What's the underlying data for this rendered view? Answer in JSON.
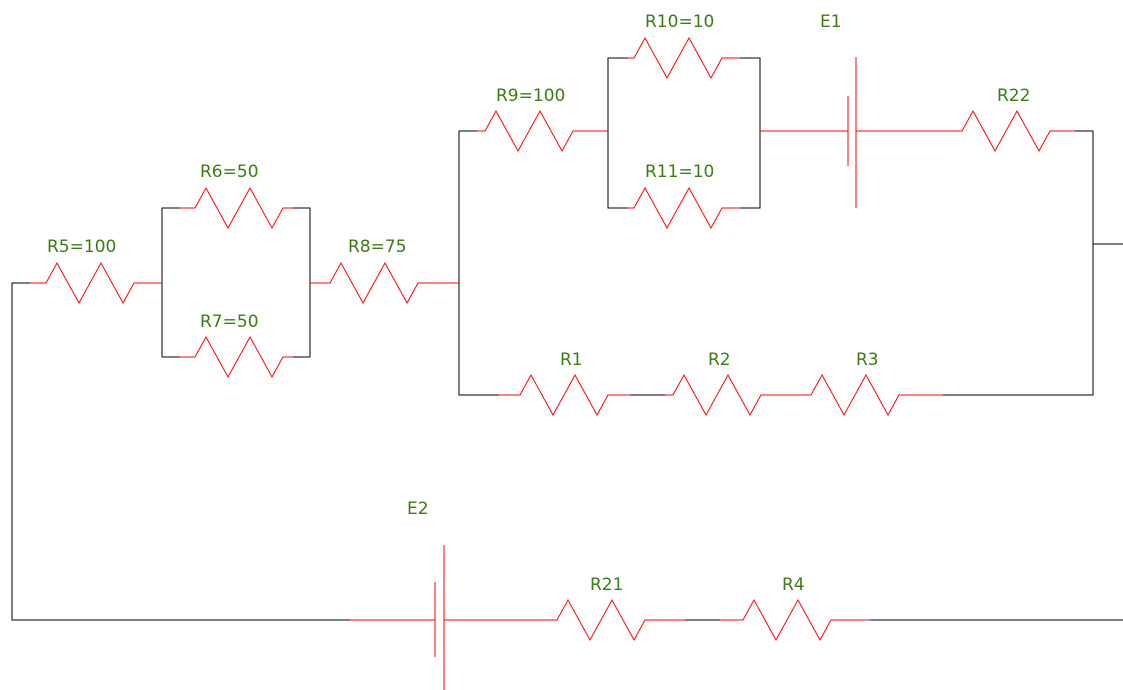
{
  "colors": {
    "wire": "#000000",
    "component": "#ff0000",
    "label": "#3a7d13",
    "background": "#ffffff"
  },
  "resistors": {
    "R5": {
      "label": "R5=100"
    },
    "R6": {
      "label": "R6=50"
    },
    "R7": {
      "label": "R7=50"
    },
    "R8": {
      "label": "R8=75"
    },
    "R9": {
      "label": "R9=100"
    },
    "R10": {
      "label": "R10=10"
    },
    "R11": {
      "label": "R11=10"
    },
    "R22": {
      "label": "R22"
    },
    "R1": {
      "label": "R1"
    },
    "R2": {
      "label": "R2"
    },
    "R3": {
      "label": "R3"
    },
    "R21": {
      "label": "R21"
    },
    "R4": {
      "label": "R4"
    }
  },
  "sources": {
    "E1": {
      "label": "E1"
    },
    "E2": {
      "label": "E2"
    }
  }
}
